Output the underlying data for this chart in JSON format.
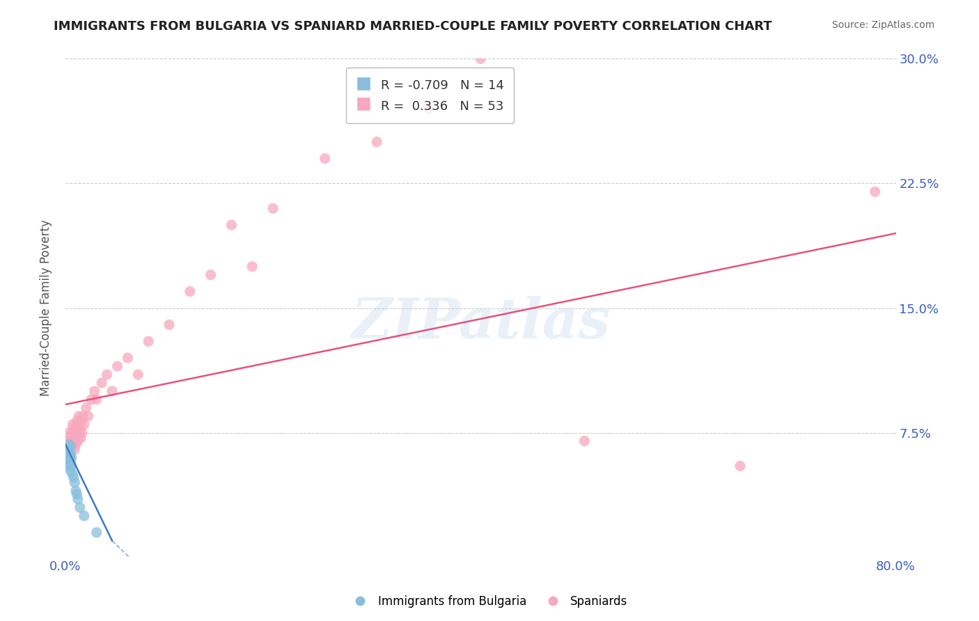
{
  "title": "IMMIGRANTS FROM BULGARIA VS SPANIARD MARRIED-COUPLE FAMILY POVERTY CORRELATION CHART",
  "source": "Source: ZipAtlas.com",
  "ylabel": "Married-Couple Family Poverty",
  "xlim": [
    0.0,
    0.8
  ],
  "ylim": [
    0.0,
    0.3
  ],
  "grid_color": "#cccccc",
  "background_color": "#ffffff",
  "watermark_text": "ZIPatlas",
  "blue_color": "#89bfdc",
  "pink_color": "#f7a8be",
  "blue_line_color": "#3a7abf",
  "pink_line_color": "#e8517a",
  "axis_label_color": "#3b5fc0",
  "title_color": "#222222",
  "blue_x": [
    0.001,
    0.002,
    0.002,
    0.003,
    0.003,
    0.003,
    0.004,
    0.004,
    0.004,
    0.005,
    0.005,
    0.005,
    0.005,
    0.006,
    0.006,
    0.007,
    0.008,
    0.009,
    0.01,
    0.011,
    0.012,
    0.014,
    0.018,
    0.03
  ],
  "blue_y": [
    0.055,
    0.06,
    0.065,
    0.058,
    0.062,
    0.068,
    0.055,
    0.06,
    0.065,
    0.052,
    0.058,
    0.062,
    0.067,
    0.055,
    0.06,
    0.05,
    0.048,
    0.045,
    0.04,
    0.038,
    0.035,
    0.03,
    0.025,
    0.015
  ],
  "pink_x": [
    0.001,
    0.002,
    0.003,
    0.004,
    0.005,
    0.005,
    0.006,
    0.006,
    0.007,
    0.007,
    0.008,
    0.008,
    0.009,
    0.009,
    0.01,
    0.01,
    0.011,
    0.011,
    0.012,
    0.012,
    0.013,
    0.013,
    0.014,
    0.015,
    0.015,
    0.016,
    0.017,
    0.018,
    0.02,
    0.022,
    0.025,
    0.028,
    0.03,
    0.035,
    0.04,
    0.045,
    0.05,
    0.06,
    0.07,
    0.08,
    0.1,
    0.12,
    0.14,
    0.16,
    0.18,
    0.2,
    0.25,
    0.3,
    0.35,
    0.4,
    0.5,
    0.65,
    0.78
  ],
  "pink_y": [
    0.07,
    0.065,
    0.075,
    0.068,
    0.06,
    0.072,
    0.065,
    0.075,
    0.068,
    0.08,
    0.07,
    0.078,
    0.065,
    0.075,
    0.068,
    0.078,
    0.072,
    0.082,
    0.07,
    0.08,
    0.075,
    0.085,
    0.078,
    0.072,
    0.082,
    0.075,
    0.085,
    0.08,
    0.09,
    0.085,
    0.095,
    0.1,
    0.095,
    0.105,
    0.11,
    0.1,
    0.115,
    0.12,
    0.11,
    0.13,
    0.14,
    0.16,
    0.17,
    0.2,
    0.175,
    0.21,
    0.24,
    0.25,
    0.27,
    0.3,
    0.07,
    0.055,
    0.22
  ],
  "pink_trend_x0": 0.0,
  "pink_trend_y0": 0.092,
  "pink_trend_x1": 0.8,
  "pink_trend_y1": 0.195,
  "blue_trend_x0": 0.0,
  "blue_trend_y0": 0.068,
  "blue_trend_x1": 0.045,
  "blue_trend_y1": 0.01
}
